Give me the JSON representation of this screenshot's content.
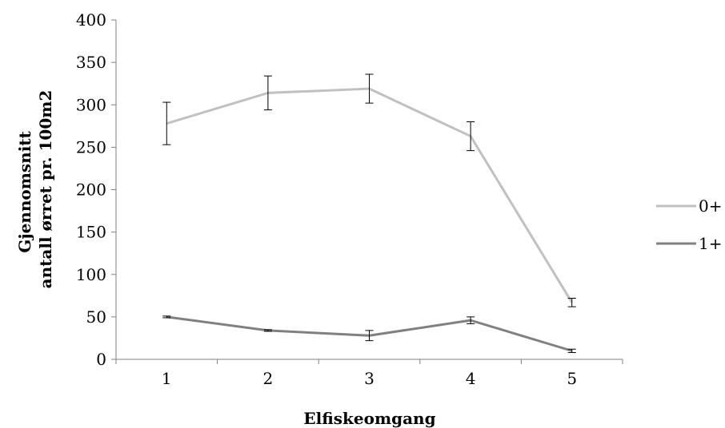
{
  "chart_data": {
    "type": "line",
    "categories": [
      "1",
      "2",
      "3",
      "4",
      "5"
    ],
    "series": [
      {
        "name": "0+",
        "values": [
          278,
          314,
          319,
          263,
          67
        ],
        "error": [
          25,
          20,
          17,
          17,
          5
        ],
        "color": "#c0c0c0"
      },
      {
        "name": "1+",
        "values": [
          50,
          34,
          28,
          46,
          10
        ],
        "error": [
          1,
          1,
          6,
          4,
          2
        ],
        "color": "#808080"
      }
    ],
    "title": "",
    "xlabel": "Elfiskeomgang",
    "ylabel_lines": [
      "Gjennomsnitt",
      "antall ørret pr. 100m2"
    ],
    "ylim": [
      0,
      400
    ],
    "yticks": [
      0,
      50,
      100,
      150,
      200,
      250,
      300,
      350,
      400
    ],
    "grid": false,
    "legend_position": "right",
    "error_bar_color": "#000000"
  }
}
